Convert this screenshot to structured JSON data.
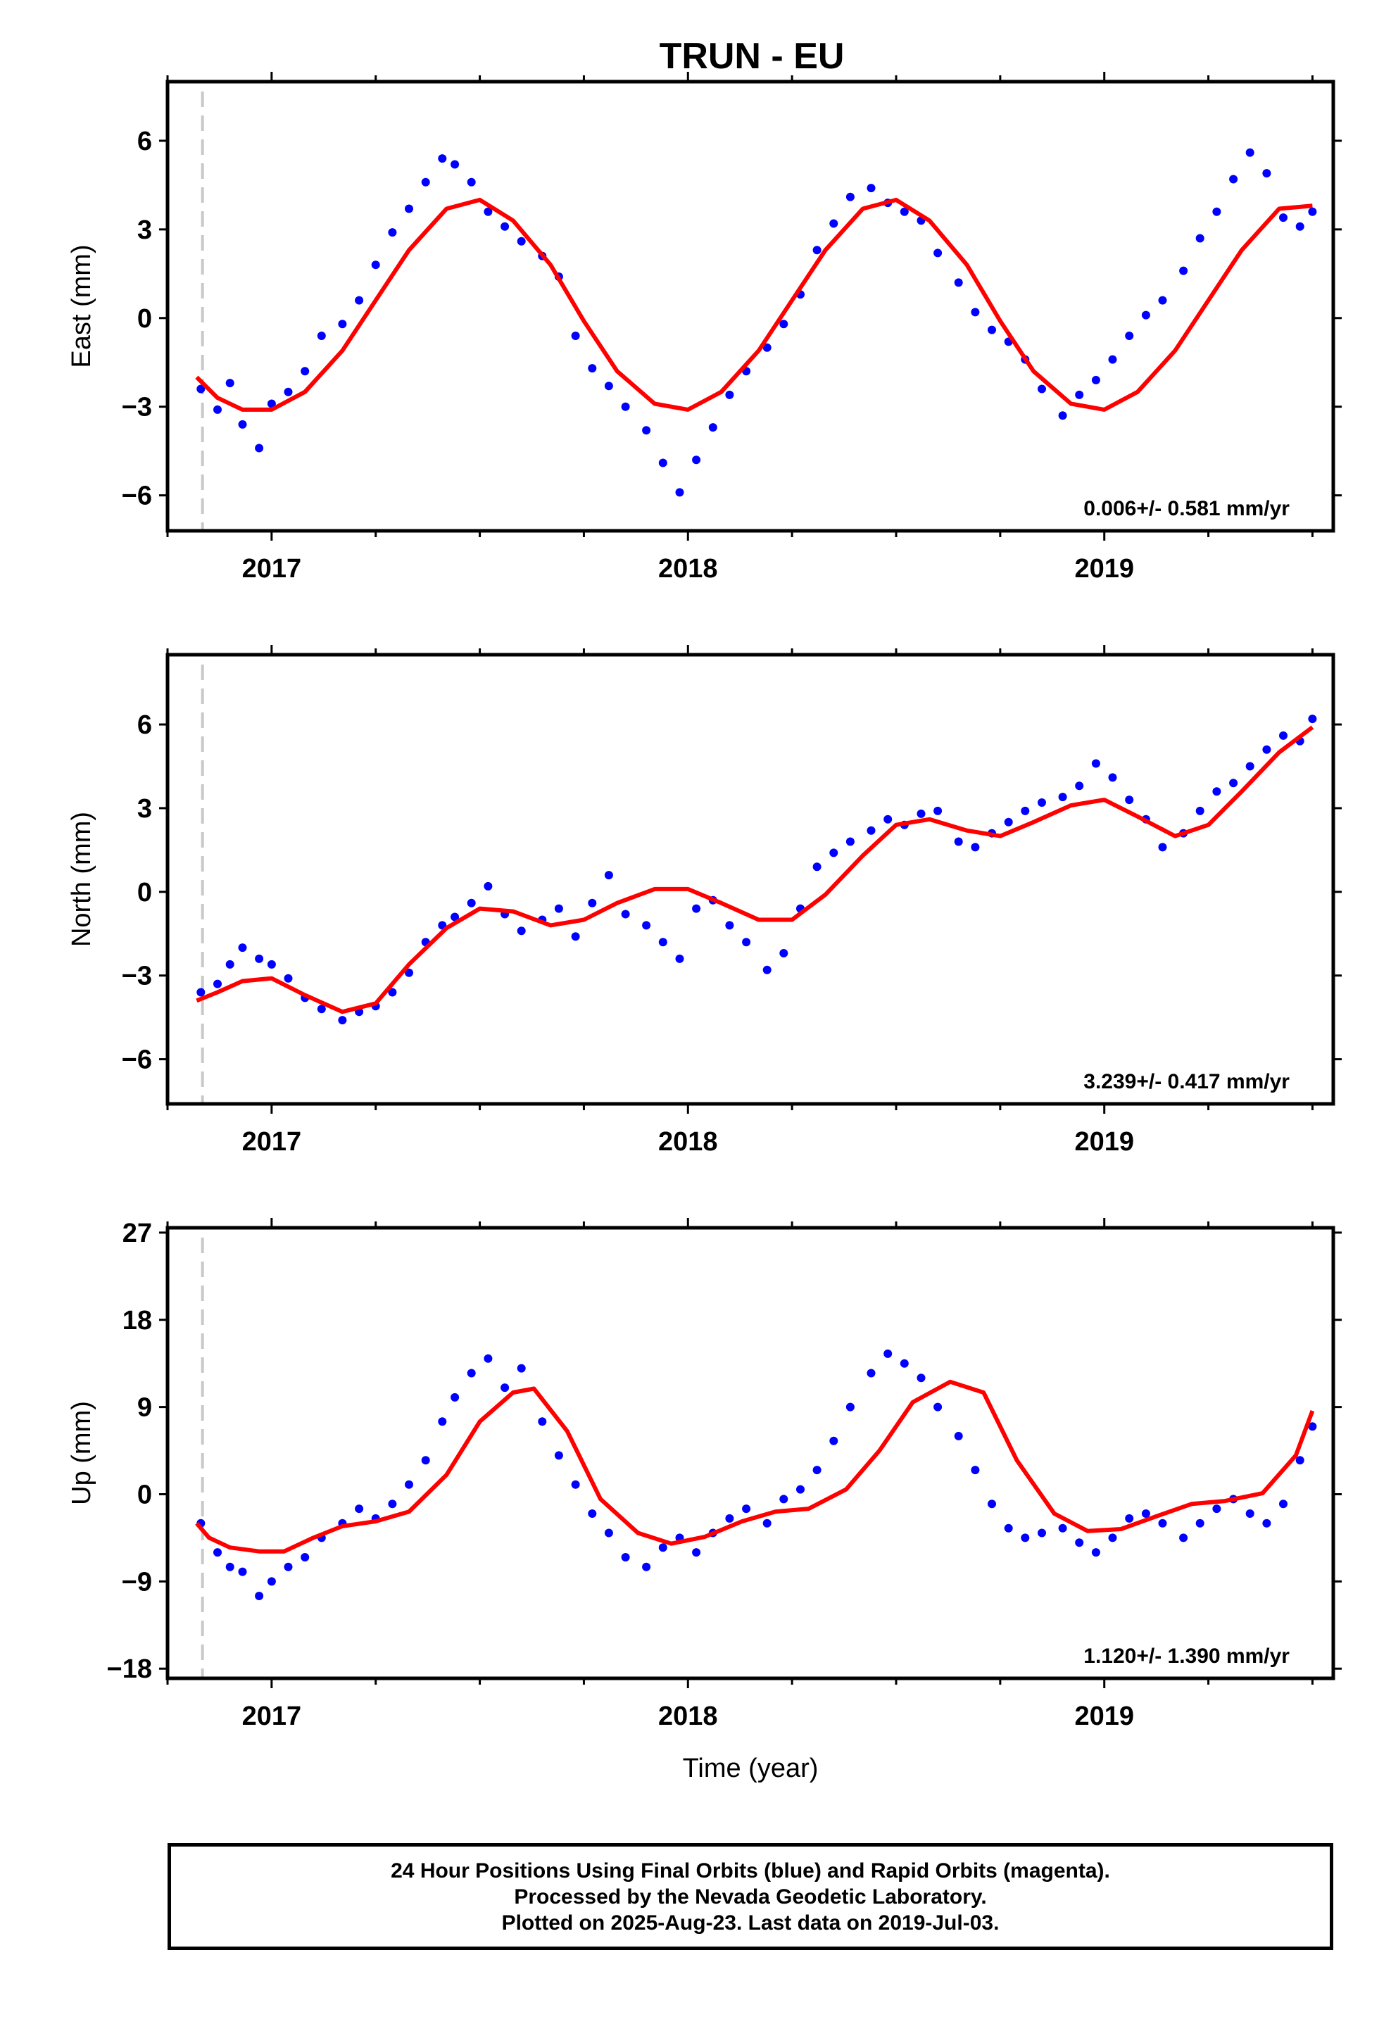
{
  "chart_data": [
    {
      "type": "scatter",
      "title": "TRUN - EU",
      "ylabel": "East (mm)",
      "xlabel": "",
      "xlim": [
        2016.75,
        2019.55
      ],
      "ylim": [
        -7.2,
        8.0
      ],
      "yticks": [
        -6,
        -3,
        0,
        3,
        6
      ],
      "ytick_labels": [
        "−6",
        "−3",
        "0",
        "3",
        "6"
      ],
      "xticks": [
        2017,
        2018,
        2019
      ],
      "xtick_labels": [
        "2017",
        "2018",
        "2019"
      ],
      "rate_label": "0.006+/- 0.581 mm/yr",
      "grid": false,
      "marker_line_x": 2016.834,
      "series": [
        {
          "color": "#0000ff",
          "x": [
            2016.83,
            2016.87,
            2016.9,
            2016.93,
            2016.97,
            2017.0,
            2017.04,
            2017.08,
            2017.12,
            2017.17,
            2017.21,
            2017.25,
            2017.29,
            2017.33,
            2017.37,
            2017.41,
            2017.44,
            2017.48,
            2017.52,
            2017.56,
            2017.6,
            2017.65,
            2017.69,
            2017.73,
            2017.77,
            2017.81,
            2017.85,
            2017.9,
            2017.94,
            2017.98,
            2018.02,
            2018.06,
            2018.1,
            2018.14,
            2018.19,
            2018.23,
            2018.27,
            2018.31,
            2018.35,
            2018.39,
            2018.44,
            2018.48,
            2018.52,
            2018.56,
            2018.6,
            2018.65,
            2018.69,
            2018.73,
            2018.77,
            2018.81,
            2018.85,
            2018.9,
            2018.94,
            2018.98,
            2019.02,
            2019.06,
            2019.1,
            2019.14,
            2019.19,
            2019.23,
            2019.27,
            2019.31,
            2019.35,
            2019.39,
            2019.43,
            2019.47,
            2019.5
          ],
          "y": [
            -2.4,
            -3.1,
            -2.2,
            -3.6,
            -4.4,
            -2.9,
            -2.5,
            -1.8,
            -0.6,
            -0.2,
            0.6,
            1.8,
            2.9,
            3.7,
            4.6,
            5.4,
            5.2,
            4.6,
            3.6,
            3.1,
            2.6,
            2.1,
            1.4,
            -0.6,
            -1.7,
            -2.3,
            -3.0,
            -3.8,
            -4.9,
            -5.9,
            -4.8,
            -3.7,
            -2.6,
            -1.8,
            -1.0,
            -0.2,
            0.8,
            2.3,
            3.2,
            4.1,
            4.4,
            3.9,
            3.6,
            3.3,
            2.2,
            1.2,
            0.2,
            -0.4,
            -0.8,
            -1.4,
            -2.4,
            -3.3,
            -2.6,
            -2.1,
            -1.4,
            -0.6,
            0.1,
            0.6,
            1.6,
            2.7,
            3.6,
            4.7,
            5.6,
            4.9,
            3.4,
            3.1,
            3.6
          ]
        },
        {
          "color": "#ff0000",
          "x": [
            2016.82,
            2016.87,
            2016.93,
            2017.0,
            2017.08,
            2017.17,
            2017.25,
            2017.33,
            2017.42,
            2017.5,
            2017.58,
            2017.67,
            2017.75,
            2017.83,
            2017.92,
            2018.0,
            2018.08,
            2018.17,
            2018.25,
            2018.33,
            2018.42,
            2018.5,
            2018.58,
            2018.67,
            2018.75,
            2018.83,
            2018.92,
            2019.0,
            2019.08,
            2019.17,
            2019.25,
            2019.33,
            2019.42,
            2019.5
          ],
          "y": [
            -2.0,
            -2.7,
            -3.1,
            -3.1,
            -2.5,
            -1.1,
            0.6,
            2.3,
            3.7,
            4.0,
            3.3,
            1.8,
            -0.1,
            -1.8,
            -2.9,
            -3.1,
            -2.5,
            -1.1,
            0.6,
            2.3,
            3.7,
            4.0,
            3.3,
            1.8,
            -0.1,
            -1.8,
            -2.9,
            -3.1,
            -2.5,
            -1.1,
            0.6,
            2.3,
            3.7,
            3.8
          ]
        }
      ]
    },
    {
      "type": "scatter",
      "title": "",
      "ylabel": "North (mm)",
      "xlabel": "",
      "xlim": [
        2016.75,
        2019.55
      ],
      "ylim": [
        -7.6,
        8.5
      ],
      "yticks": [
        -6,
        -3,
        0,
        3,
        6
      ],
      "ytick_labels": [
        "−6",
        "−3",
        "0",
        "3",
        "6"
      ],
      "xticks": [
        2017,
        2018,
        2019
      ],
      "xtick_labels": [
        "2017",
        "2018",
        "2019"
      ],
      "rate_label": "3.239+/- 0.417 mm/yr",
      "grid": false,
      "marker_line_x": 2016.834,
      "series": [
        {
          "color": "#0000ff",
          "x": [
            2016.83,
            2016.87,
            2016.9,
            2016.93,
            2016.97,
            2017.0,
            2017.04,
            2017.08,
            2017.12,
            2017.17,
            2017.21,
            2017.25,
            2017.29,
            2017.33,
            2017.37,
            2017.41,
            2017.44,
            2017.48,
            2017.52,
            2017.56,
            2017.6,
            2017.65,
            2017.69,
            2017.73,
            2017.77,
            2017.81,
            2017.85,
            2017.9,
            2017.94,
            2017.98,
            2018.02,
            2018.06,
            2018.1,
            2018.14,
            2018.19,
            2018.23,
            2018.27,
            2018.31,
            2018.35,
            2018.39,
            2018.44,
            2018.48,
            2018.52,
            2018.56,
            2018.6,
            2018.65,
            2018.69,
            2018.73,
            2018.77,
            2018.81,
            2018.85,
            2018.9,
            2018.94,
            2018.98,
            2019.02,
            2019.06,
            2019.1,
            2019.14,
            2019.19,
            2019.23,
            2019.27,
            2019.31,
            2019.35,
            2019.39,
            2019.43,
            2019.47,
            2019.5
          ],
          "y": [
            -3.6,
            -3.3,
            -2.6,
            -2.0,
            -2.4,
            -2.6,
            -3.1,
            -3.8,
            -4.2,
            -4.6,
            -4.3,
            -4.1,
            -3.6,
            -2.9,
            -1.8,
            -1.2,
            -0.9,
            -0.4,
            0.2,
            -0.8,
            -1.4,
            -1.0,
            -0.6,
            -1.6,
            -0.4,
            0.6,
            -0.8,
            -1.2,
            -1.8,
            -2.4,
            -0.6,
            -0.3,
            -1.2,
            -1.8,
            -2.8,
            -2.2,
            -0.6,
            0.9,
            1.4,
            1.8,
            2.2,
            2.6,
            2.4,
            2.8,
            2.9,
            1.8,
            1.6,
            2.1,
            2.5,
            2.9,
            3.2,
            3.4,
            3.8,
            4.6,
            4.1,
            3.3,
            2.6,
            1.6,
            2.1,
            2.9,
            3.6,
            3.9,
            4.5,
            5.1,
            5.6,
            5.4,
            6.2
          ]
        },
        {
          "color": "#ff0000",
          "x": [
            2016.82,
            2016.87,
            2016.93,
            2017.0,
            2017.08,
            2017.17,
            2017.25,
            2017.33,
            2017.42,
            2017.5,
            2017.58,
            2017.67,
            2017.75,
            2017.83,
            2017.92,
            2018.0,
            2018.08,
            2018.17,
            2018.25,
            2018.33,
            2018.42,
            2018.5,
            2018.58,
            2018.67,
            2018.75,
            2018.83,
            2018.92,
            2019.0,
            2019.08,
            2019.17,
            2019.25,
            2019.33,
            2019.42,
            2019.5
          ],
          "y": [
            -3.9,
            -3.6,
            -3.2,
            -3.1,
            -3.7,
            -4.3,
            -4.0,
            -2.6,
            -1.3,
            -0.6,
            -0.7,
            -1.2,
            -1.0,
            -0.4,
            0.1,
            0.1,
            -0.4,
            -1.0,
            -1.0,
            -0.1,
            1.3,
            2.4,
            2.6,
            2.2,
            2.0,
            2.5,
            3.1,
            3.3,
            2.7,
            2.0,
            2.4,
            3.6,
            5.0,
            5.9
          ]
        }
      ]
    },
    {
      "type": "scatter",
      "title": "",
      "ylabel": "Up (mm)",
      "xlabel": "Time (year)",
      "xlim": [
        2016.75,
        2019.55
      ],
      "ylim": [
        -19.0,
        27.5
      ],
      "yticks": [
        -18,
        -9,
        0,
        9,
        18,
        27
      ],
      "ytick_labels": [
        "−18",
        "−9",
        "0",
        "9",
        "18",
        "27"
      ],
      "xticks": [
        2017,
        2018,
        2019
      ],
      "xtick_labels": [
        "2017",
        "2018",
        "2019"
      ],
      "rate_label": "1.120+/- 1.390 mm/yr",
      "grid": false,
      "marker_line_x": 2016.834,
      "series": [
        {
          "color": "#0000ff",
          "x": [
            2016.83,
            2016.87,
            2016.9,
            2016.93,
            2016.97,
            2017.0,
            2017.04,
            2017.08,
            2017.12,
            2017.17,
            2017.21,
            2017.25,
            2017.29,
            2017.33,
            2017.37,
            2017.41,
            2017.44,
            2017.48,
            2017.52,
            2017.56,
            2017.6,
            2017.65,
            2017.69,
            2017.73,
            2017.77,
            2017.81,
            2017.85,
            2017.9,
            2017.94,
            2017.98,
            2018.02,
            2018.06,
            2018.1,
            2018.14,
            2018.19,
            2018.23,
            2018.27,
            2018.31,
            2018.35,
            2018.39,
            2018.44,
            2018.48,
            2018.52,
            2018.56,
            2018.6,
            2018.65,
            2018.69,
            2018.73,
            2018.77,
            2018.81,
            2018.85,
            2018.9,
            2018.94,
            2018.98,
            2019.02,
            2019.06,
            2019.1,
            2019.14,
            2019.19,
            2019.23,
            2019.27,
            2019.31,
            2019.35,
            2019.39,
            2019.43,
            2019.47,
            2019.5
          ],
          "y": [
            -3.0,
            -6.0,
            -7.5,
            -8.0,
            -10.5,
            -9.0,
            -7.5,
            -6.5,
            -4.5,
            -3.0,
            -1.5,
            -2.5,
            -1.0,
            1.0,
            3.5,
            7.5,
            10.0,
            12.5,
            14.0,
            11.0,
            13.0,
            7.5,
            4.0,
            1.0,
            -2.0,
            -4.0,
            -6.5,
            -7.5,
            -5.5,
            -4.5,
            -6.0,
            -4.0,
            -2.5,
            -1.5,
            -3.0,
            -0.5,
            0.5,
            2.5,
            5.5,
            9.0,
            12.5,
            14.5,
            13.5,
            12.0,
            9.0,
            6.0,
            2.5,
            -1.0,
            -3.5,
            -4.5,
            -4.0,
            -3.5,
            -5.0,
            -6.0,
            -4.5,
            -2.5,
            -2.0,
            -3.0,
            -4.5,
            -3.0,
            -1.5,
            -0.5,
            -2.0,
            -3.0,
            -1.0,
            3.5,
            7.0
          ]
        },
        {
          "color": "#ff0000",
          "x": [
            2016.82,
            2016.85,
            2016.9,
            2016.97,
            2017.03,
            2017.1,
            2017.17,
            2017.25,
            2017.33,
            2017.42,
            2017.5,
            2017.58,
            2017.63,
            2017.71,
            2017.79,
            2017.88,
            2017.96,
            2018.04,
            2018.13,
            2018.21,
            2018.29,
            2018.38,
            2018.46,
            2018.54,
            2018.63,
            2018.71,
            2018.79,
            2018.88,
            2018.96,
            2019.04,
            2019.13,
            2019.21,
            2019.29,
            2019.38,
            2019.46,
            2019.5
          ],
          "y": [
            -3.0,
            -4.5,
            -5.5,
            -5.9,
            -5.9,
            -4.5,
            -3.3,
            -2.8,
            -1.8,
            2.0,
            7.5,
            10.5,
            10.9,
            6.5,
            -0.5,
            -4.0,
            -5.1,
            -4.4,
            -2.8,
            -1.8,
            -1.5,
            0.5,
            4.5,
            9.5,
            11.6,
            10.5,
            3.5,
            -2.0,
            -3.8,
            -3.6,
            -2.2,
            -1.0,
            -0.7,
            0.1,
            4.0,
            8.6
          ]
        }
      ]
    }
  ],
  "footer": {
    "line1": "24 Hour Positions Using Final Orbits (blue) and Rapid Orbits (magenta).",
    "line2": "Processed by the Nevada Geodetic Laboratory.",
    "line3": "Plotted on 2025-Aug-23. Last data on 2019-Jul-03."
  }
}
